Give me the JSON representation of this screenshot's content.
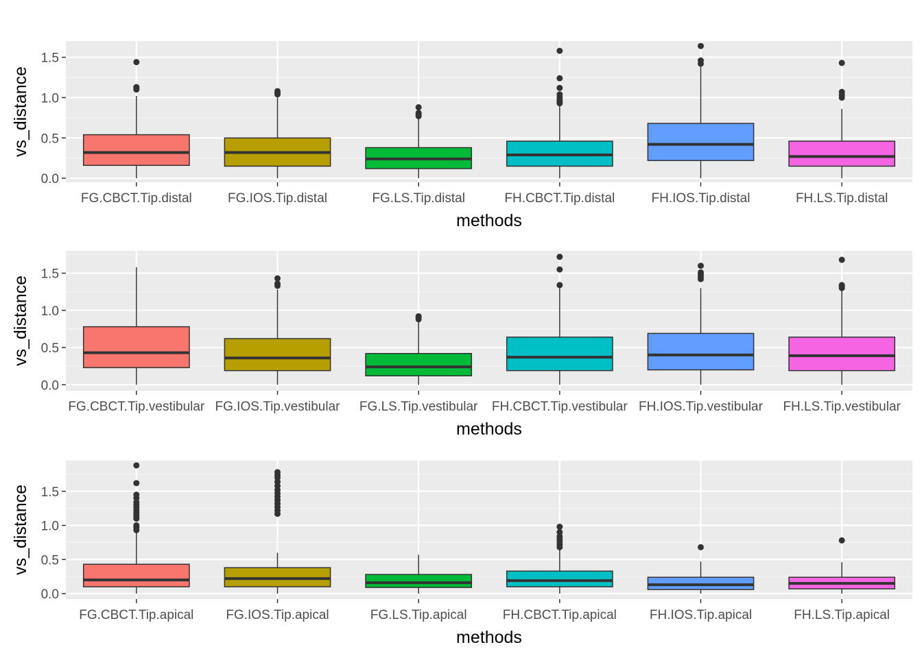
{
  "chart_data": [
    {
      "type": "boxplot",
      "xlabel": "methods",
      "ylabel": "vs_distance",
      "ylim": [
        -0.05,
        1.7
      ],
      "y_ticks": [
        0.0,
        0.5,
        1.0,
        1.5
      ],
      "y_tick_labels": [
        "0.0",
        "0.5",
        "1.0",
        "1.5"
      ],
      "grid": true,
      "legend": "none",
      "categories": [
        "FG.CBCT.Tip.distal",
        "FG.IOS.Tip.distal",
        "FG.LS.Tip.distal",
        "FH.CBCT.Tip.distal",
        "FH.IOS.Tip.distal",
        "FH.LS.Tip.distal"
      ],
      "boxes": [
        {
          "min": 0.0,
          "q1": 0.16,
          "median": 0.32,
          "q3": 0.54,
          "max": 1.02,
          "outliers": [
            1.1,
            1.12,
            1.13,
            1.44
          ]
        },
        {
          "min": 0.0,
          "q1": 0.15,
          "median": 0.32,
          "q3": 0.5,
          "max": 1.0,
          "outliers": [
            1.04,
            1.06,
            1.08
          ]
        },
        {
          "min": 0.0,
          "q1": 0.12,
          "median": 0.24,
          "q3": 0.38,
          "max": 0.74,
          "outliers": [
            0.77,
            0.79,
            0.81,
            0.88
          ]
        },
        {
          "min": 0.0,
          "q1": 0.15,
          "median": 0.29,
          "q3": 0.46,
          "max": 0.9,
          "outliers": [
            0.93,
            0.95,
            0.97,
            1.0,
            1.04,
            1.12,
            1.24,
            1.58
          ]
        },
        {
          "min": 0.0,
          "q1": 0.22,
          "median": 0.42,
          "q3": 0.68,
          "max": 1.38,
          "outliers": [
            1.42,
            1.46,
            1.64
          ]
        },
        {
          "min": 0.0,
          "q1": 0.15,
          "median": 0.27,
          "q3": 0.46,
          "max": 0.86,
          "outliers": [
            1.0,
            1.03,
            1.07,
            1.43
          ]
        }
      ]
    },
    {
      "type": "boxplot",
      "xlabel": "methods",
      "ylabel": "vs_distance",
      "ylim": [
        -0.08,
        1.8
      ],
      "y_ticks": [
        0.0,
        0.5,
        1.0,
        1.5
      ],
      "y_tick_labels": [
        "0.0",
        "0.5",
        "1.0",
        "1.5"
      ],
      "grid": true,
      "legend": "none",
      "categories": [
        "FG.CBCT.Tip.vestibular",
        "FG.IOS.Tip.vestibular",
        "FG.LS.Tip.vestibular",
        "FH.CBCT.Tip.vestibular",
        "FH.IOS.Tip.vestibular",
        "FH.LS.Tip.vestibular"
      ],
      "boxes": [
        {
          "min": 0.0,
          "q1": 0.23,
          "median": 0.43,
          "q3": 0.78,
          "max": 1.58,
          "outliers": []
        },
        {
          "min": 0.0,
          "q1": 0.19,
          "median": 0.36,
          "q3": 0.62,
          "max": 1.28,
          "outliers": [
            1.33,
            1.36,
            1.43
          ]
        },
        {
          "min": 0.0,
          "q1": 0.12,
          "median": 0.24,
          "q3": 0.42,
          "max": 0.86,
          "outliers": [
            0.88,
            0.9,
            0.92
          ]
        },
        {
          "min": 0.0,
          "q1": 0.19,
          "median": 0.37,
          "q3": 0.64,
          "max": 1.3,
          "outliers": [
            1.34,
            1.55,
            1.72
          ]
        },
        {
          "min": 0.0,
          "q1": 0.2,
          "median": 0.4,
          "q3": 0.69,
          "max": 1.3,
          "outliers": [
            1.42,
            1.45,
            1.48,
            1.51,
            1.6
          ]
        },
        {
          "min": 0.0,
          "q1": 0.19,
          "median": 0.39,
          "q3": 0.64,
          "max": 1.28,
          "outliers": [
            1.3,
            1.32,
            1.34,
            1.68
          ]
        }
      ]
    },
    {
      "type": "boxplot",
      "xlabel": "methods",
      "ylabel": "vs_distance",
      "ylim": [
        -0.08,
        1.95
      ],
      "y_ticks": [
        0.0,
        0.5,
        1.0,
        1.5
      ],
      "y_tick_labels": [
        "0.0",
        "0.5",
        "1.0",
        "1.5"
      ],
      "grid": true,
      "legend": "none",
      "categories": [
        "FG.CBCT.Tip.apical",
        "FG.IOS.Tip.apical",
        "FG.LS.Tip.apical",
        "FH.CBCT.Tip.apical",
        "FH.IOS.Tip.apical",
        "FH.LS.Tip.apical"
      ],
      "boxes": [
        {
          "min": 0.0,
          "q1": 0.1,
          "median": 0.2,
          "q3": 0.43,
          "max": 0.9,
          "outliers": [
            0.93,
            0.97,
            1.0,
            1.1,
            1.14,
            1.18,
            1.22,
            1.26,
            1.3,
            1.34,
            1.4,
            1.45,
            1.62,
            1.88
          ]
        },
        {
          "min": 0.0,
          "q1": 0.1,
          "median": 0.22,
          "q3": 0.38,
          "max": 0.6,
          "outliers": [
            1.17,
            1.22,
            1.27,
            1.32,
            1.37,
            1.42,
            1.47,
            1.52,
            1.58,
            1.64,
            1.7,
            1.74,
            1.78
          ]
        },
        {
          "min": 0.0,
          "q1": 0.09,
          "median": 0.16,
          "q3": 0.28,
          "max": 0.57,
          "outliers": []
        },
        {
          "min": 0.0,
          "q1": 0.1,
          "median": 0.19,
          "q3": 0.33,
          "max": 0.66,
          "outliers": [
            0.68,
            0.72,
            0.76,
            0.8,
            0.84,
            0.9,
            0.98
          ]
        },
        {
          "min": 0.0,
          "q1": 0.06,
          "median": 0.13,
          "q3": 0.24,
          "max": 0.47,
          "outliers": [
            0.68
          ]
        },
        {
          "min": 0.0,
          "q1": 0.07,
          "median": 0.15,
          "q3": 0.24,
          "max": 0.46,
          "outliers": [
            0.78
          ]
        }
      ]
    }
  ],
  "colors": {
    "fills": [
      "#F8766D",
      "#B79F00",
      "#00BA38",
      "#00BFC4",
      "#619CFF",
      "#F564E3"
    ],
    "panel_background": "#EBEBEB",
    "grid_major": "#FFFFFF",
    "grid_minor": "#F5F5F5",
    "box_outline": "#333333",
    "tick_text": "#4D4D4D"
  }
}
